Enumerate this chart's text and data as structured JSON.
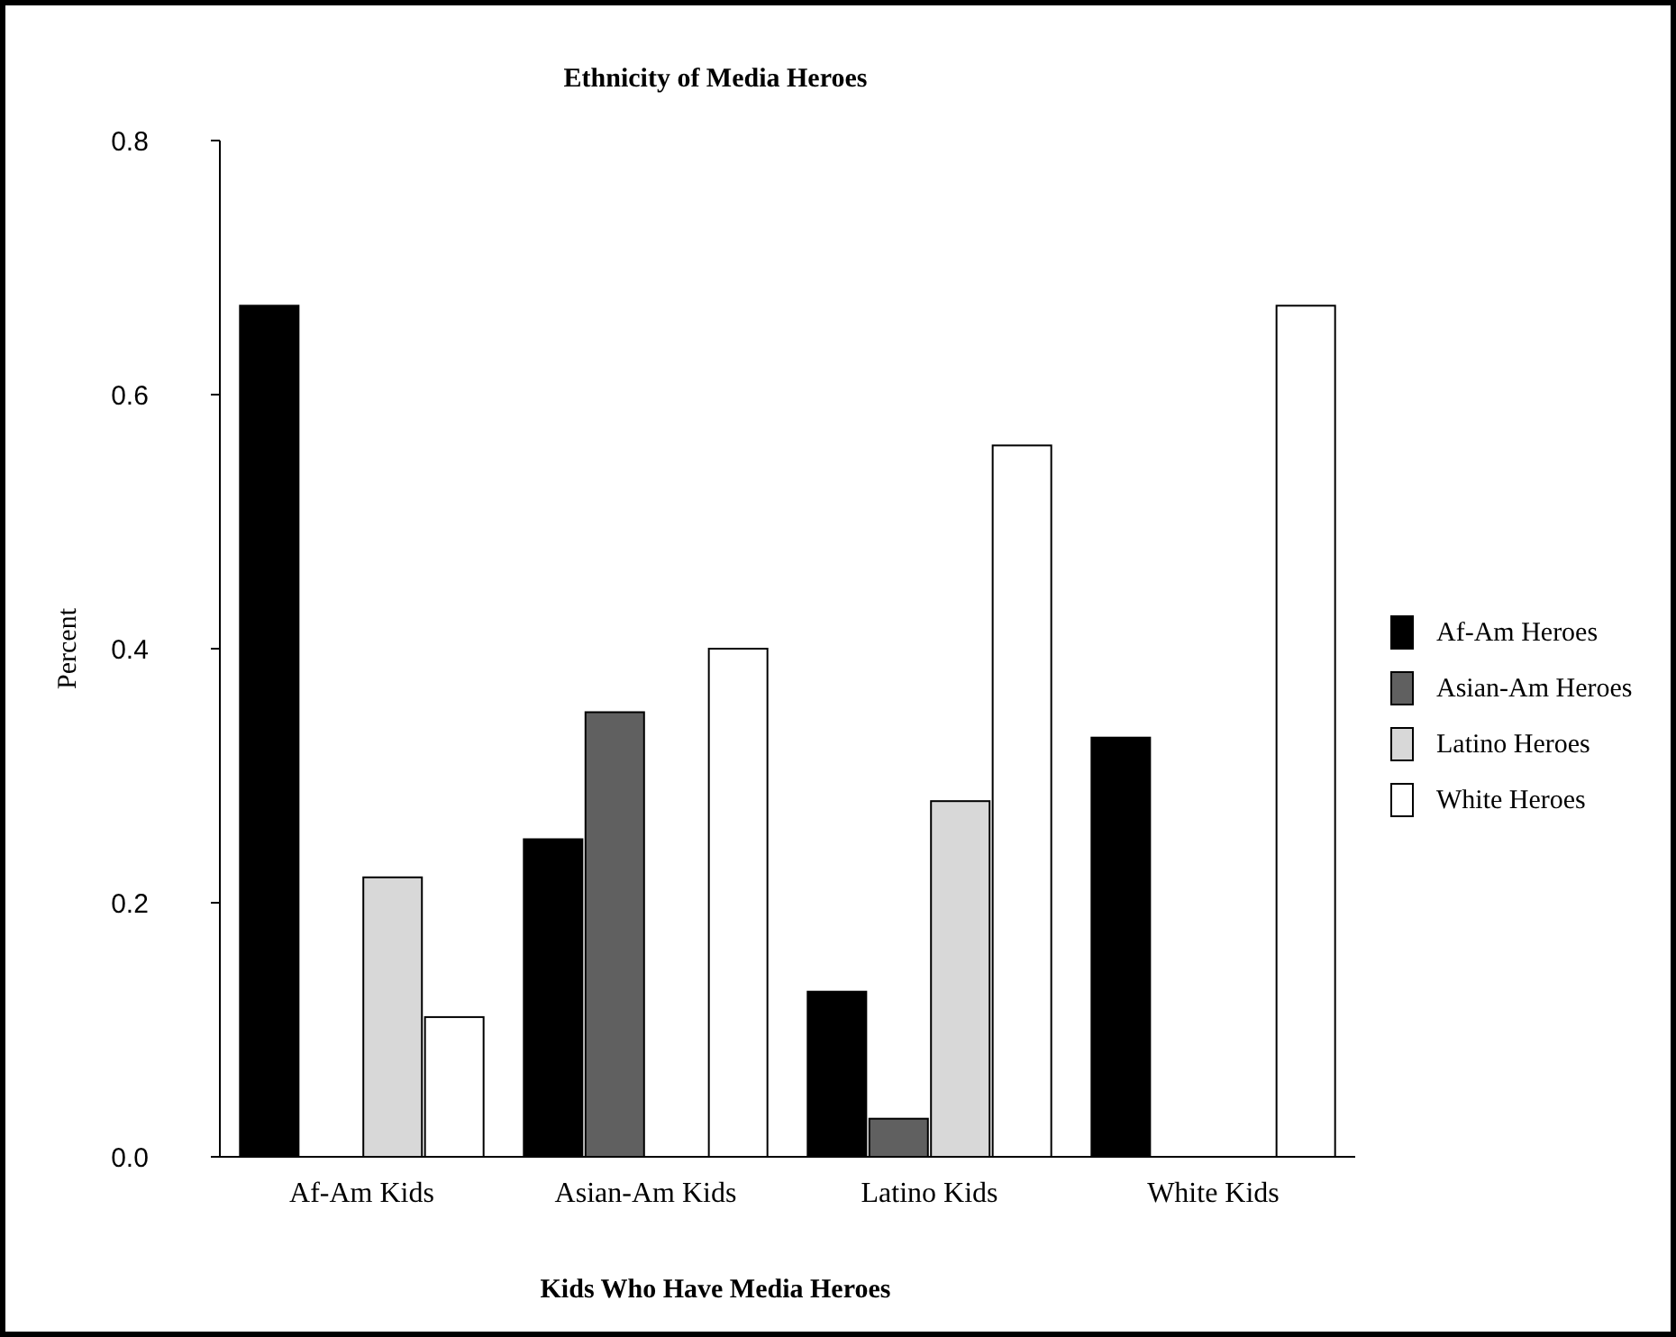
{
  "chart_data": {
    "type": "bar",
    "title": "Ethnicity of Media Heroes",
    "xlabel": "Kids Who Have Media Heroes",
    "ylabel": "Percent",
    "categories": [
      "Af-Am Kids",
      "Asian-Am Kids",
      "Latino Kids",
      "White Kids"
    ],
    "series": [
      {
        "name": "Af-Am Heroes",
        "color": "#000000",
        "values": [
          0.67,
          0.25,
          0.13,
          0.33
        ]
      },
      {
        "name": "Asian-Am Heroes",
        "color": "#606060",
        "values": [
          0,
          0.35,
          0.03,
          0
        ]
      },
      {
        "name": "Latino Heroes",
        "color": "#d8d8d8",
        "values": [
          0.22,
          0,
          0.28,
          0
        ]
      },
      {
        "name": "White Heroes",
        "color": "#ffffff",
        "values": [
          0.11,
          0.4,
          0.56,
          0.67
        ]
      }
    ],
    "ylim": [
      0,
      0.8
    ],
    "yticks": [
      {
        "value": 0,
        "label": "0.0"
      },
      0.2,
      0.4,
      0.6,
      0.8
    ],
    "legend": "right",
    "grid": false
  }
}
